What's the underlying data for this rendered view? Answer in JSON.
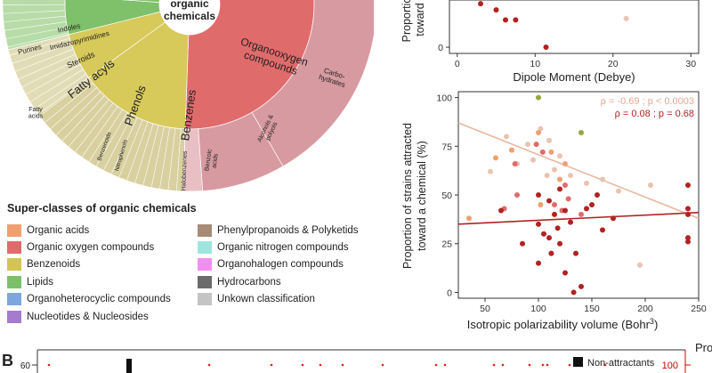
{
  "panel_b": {
    "label": "B"
  },
  "sunburst": {
    "center_label_lines": [
      "organic",
      "chemicals"
    ],
    "segments": [
      {
        "label": "Organooxygen compounds",
        "lines": [
          "Organooxygen",
          "compounds"
        ],
        "color": "#e06b6b"
      },
      {
        "label": "Carbohydrates",
        "lines": [
          "Carbo-",
          "hydrates"
        ],
        "color": "#d79aa0"
      },
      {
        "label": "Alcohols & polyols",
        "lines": [
          "Alcohols &",
          "polyols"
        ],
        "color": "#d79aa0"
      },
      {
        "label": "Benzenes",
        "lines": [
          "Benzenes"
        ],
        "color": "#d7c95a"
      },
      {
        "label": "Phenols",
        "lines": [
          "Phenols"
        ],
        "color": "#d7c95a"
      },
      {
        "label": "Benzenoids",
        "lines": [
          "Benzenoids"
        ],
        "color": "#d9d0a0"
      },
      {
        "label": "Nitrophenols",
        "lines": [
          "Nitrophenols"
        ],
        "color": "#d9d0a0"
      },
      {
        "label": "Halobenzenes",
        "lines": [
          "Halobenzenes"
        ],
        "color": "#d9d0a0"
      },
      {
        "label": "Benzoic acids",
        "lines": [
          "Benzoic",
          "acids"
        ],
        "color": "#d9d0a0"
      },
      {
        "label": "Fatty acyls",
        "lines": [
          "Fatty acyls"
        ],
        "color": "#7fc06a"
      },
      {
        "label": "Steroids",
        "lines": [
          "Steroids"
        ],
        "color": "#7fc06a"
      },
      {
        "label": "Fatty acids",
        "lines": [
          "Fatty",
          "acids"
        ],
        "color": "#b7dca8"
      },
      {
        "label": "Indoles",
        "lines": [
          "Indoles"
        ],
        "color": "#7ba7d8"
      },
      {
        "label": "Imidazopyrimidines",
        "lines": [
          "Imidazopyrimidines"
        ],
        "color": "#7ba7d8"
      },
      {
        "label": "Purines",
        "lines": [
          "Purines"
        ],
        "color": "#a8c6e8"
      }
    ]
  },
  "legend": {
    "title": "Super-classes of organic chemicals",
    "left": [
      {
        "label": "Organic acids",
        "color": "#f0a070"
      },
      {
        "label": "Organic oxygen compounds",
        "color": "#e06b6b"
      },
      {
        "label": "Benzenoids",
        "color": "#d4c452"
      },
      {
        "label": "Lipids",
        "color": "#7cc06b"
      },
      {
        "label": "Organoheterocyclic compounds",
        "color": "#7aa8dc"
      },
      {
        "label": "Nucleotides & Nucleosides",
        "color": "#a57bd0"
      }
    ],
    "right": [
      {
        "label": "Phenylpropanoids & Polyketids",
        "color": "#a88b76"
      },
      {
        "label": "Organic nitrogen compounds",
        "color": "#9ee5e0"
      },
      {
        "label": "Organohalogen compounds",
        "color": "#f08ff0"
      },
      {
        "label": "Hydrocarbons",
        "color": "#6b6b6b"
      },
      {
        "label": "Unkown classification",
        "color": "#c4c4c4"
      }
    ]
  },
  "chart_data": [
    {
      "type": "scatter",
      "title": "",
      "xlabel": "Dipole Moment (Debye)",
      "ylabel_lines": [
        "Proportio",
        "toward"
      ],
      "xlim": [
        -1,
        31
      ],
      "ylim": [
        -5,
        38
      ],
      "x_ticks": [
        0,
        10,
        20,
        30
      ],
      "y_ticks": [
        0
      ],
      "points": [
        {
          "x": 3.0,
          "y": 35,
          "c": "#b22222"
        },
        {
          "x": 5.0,
          "y": 30,
          "c": "#b22222"
        },
        {
          "x": 6.2,
          "y": 22,
          "c": "#b22222"
        },
        {
          "x": 7.5,
          "y": 22,
          "c": "#b22222"
        },
        {
          "x": 11.4,
          "y": 0,
          "c": "#b22222"
        },
        {
          "x": 21.7,
          "y": 23,
          "c": "#e8c4b0"
        }
      ]
    },
    {
      "type": "scatter",
      "title": "",
      "xlabel": "Isotropic polarizability volume (Bohr",
      "xlabel_sup": "3",
      "xlabel_close": ")",
      "ylabel_lines": [
        "Proportion of strains attracted",
        "toward a chemical (%)"
      ],
      "xlim": [
        25,
        250
      ],
      "ylim": [
        -3,
        103
      ],
      "x_ticks": [
        50,
        100,
        150,
        200,
        250
      ],
      "y_ticks": [
        0,
        25,
        50,
        75,
        100
      ],
      "annotations": [
        {
          "label": "ρ = -0.69 ; p < 0.0003",
          "color": "#e3a994"
        },
        {
          "label": "ρ = 0.08 ; p = 0.68",
          "color": "#b22222"
        }
      ],
      "fits": [
        {
          "x": [
            25,
            250
          ],
          "y": [
            87,
            38
          ],
          "color": "#e8b8a0"
        },
        {
          "x": [
            25,
            250
          ],
          "y": [
            35,
            41
          ],
          "color": "#b22222"
        }
      ],
      "points": [
        {
          "x": 100,
          "y": 100,
          "c": "#9aa63a"
        },
        {
          "x": 140,
          "y": 82,
          "c": "#9aa63a"
        },
        {
          "x": 102,
          "y": 84,
          "c": "#e8c4b0"
        },
        {
          "x": 110,
          "y": 78,
          "c": "#e8c4b0"
        },
        {
          "x": 90,
          "y": 76,
          "c": "#e8c4b0"
        },
        {
          "x": 70,
          "y": 80,
          "c": "#e8c4b0"
        },
        {
          "x": 95,
          "y": 68,
          "c": "#e8c4b0"
        },
        {
          "x": 120,
          "y": 70,
          "c": "#e8c4b0"
        },
        {
          "x": 115,
          "y": 63,
          "c": "#e8c4b0"
        },
        {
          "x": 130,
          "y": 60,
          "c": "#e8c4b0"
        },
        {
          "x": 55,
          "y": 62,
          "c": "#e8c4b0"
        },
        {
          "x": 80,
          "y": 66,
          "c": "#e8c4b0"
        },
        {
          "x": 160,
          "y": 58,
          "c": "#e8c4b0"
        },
        {
          "x": 175,
          "y": 52,
          "c": "#e8c4b0"
        },
        {
          "x": 205,
          "y": 55,
          "c": "#e8c4b0"
        },
        {
          "x": 195,
          "y": 14,
          "c": "#e8c4b0"
        },
        {
          "x": 108,
          "y": 60,
          "c": "#e8c4b0"
        },
        {
          "x": 145,
          "y": 56,
          "c": "#e8c4b0"
        },
        {
          "x": 100,
          "y": 82,
          "c": "#f0a070"
        },
        {
          "x": 75,
          "y": 73,
          "c": "#f0a070"
        },
        {
          "x": 112,
          "y": 72,
          "c": "#f0a070"
        },
        {
          "x": 125,
          "y": 66,
          "c": "#f0a070"
        },
        {
          "x": 60,
          "y": 69,
          "c": "#f0a070"
        },
        {
          "x": 102,
          "y": 45,
          "c": "#f0a070"
        },
        {
          "x": 35,
          "y": 38,
          "c": "#f0a070"
        },
        {
          "x": 120,
          "y": 58,
          "c": "#f0a070"
        },
        {
          "x": 98,
          "y": 76,
          "c": "#e06b6b"
        },
        {
          "x": 104,
          "y": 72,
          "c": "#e06b6b"
        },
        {
          "x": 128,
          "y": 48,
          "c": "#e06b6b"
        },
        {
          "x": 122,
          "y": 42,
          "c": "#e06b6b"
        },
        {
          "x": 80,
          "y": 50,
          "c": "#e06b6b"
        },
        {
          "x": 68,
          "y": 43,
          "c": "#e06b6b"
        },
        {
          "x": 115,
          "y": 45,
          "c": "#e06b6b"
        },
        {
          "x": 140,
          "y": 40,
          "c": "#e06b6b"
        },
        {
          "x": 78,
          "y": 66,
          "c": "#e06b6b"
        },
        {
          "x": 125,
          "y": 55,
          "c": "#e06b6b"
        },
        {
          "x": 120,
          "y": 53,
          "c": "#b22222"
        },
        {
          "x": 100,
          "y": 50,
          "c": "#b22222"
        },
        {
          "x": 110,
          "y": 47,
          "c": "#b22222"
        },
        {
          "x": 115,
          "y": 40,
          "c": "#b22222"
        },
        {
          "x": 125,
          "y": 42,
          "c": "#b22222"
        },
        {
          "x": 100,
          "y": 35,
          "c": "#b22222"
        },
        {
          "x": 105,
          "y": 30,
          "c": "#b22222"
        },
        {
          "x": 110,
          "y": 28,
          "c": "#b22222"
        },
        {
          "x": 118,
          "y": 33,
          "c": "#b22222"
        },
        {
          "x": 130,
          "y": 36,
          "c": "#b22222"
        },
        {
          "x": 135,
          "y": 20,
          "c": "#b22222"
        },
        {
          "x": 120,
          "y": 25,
          "c": "#b22222"
        },
        {
          "x": 100,
          "y": 15,
          "c": "#b22222"
        },
        {
          "x": 125,
          "y": 10,
          "c": "#b22222"
        },
        {
          "x": 140,
          "y": 3,
          "c": "#b22222"
        },
        {
          "x": 133,
          "y": 0,
          "c": "#b22222"
        },
        {
          "x": 85,
          "y": 25,
          "c": "#b22222"
        },
        {
          "x": 65,
          "y": 42,
          "c": "#b22222"
        },
        {
          "x": 150,
          "y": 45,
          "c": "#b22222"
        },
        {
          "x": 160,
          "y": 32,
          "c": "#b22222"
        },
        {
          "x": 170,
          "y": 38,
          "c": "#b22222"
        },
        {
          "x": 155,
          "y": 50,
          "c": "#b22222"
        },
        {
          "x": 240,
          "y": 55,
          "c": "#b22222"
        },
        {
          "x": 240,
          "y": 43,
          "c": "#b22222"
        },
        {
          "x": 240,
          "y": 40,
          "c": "#b22222"
        },
        {
          "x": 240,
          "y": 28,
          "c": "#b22222"
        },
        {
          "x": 240,
          "y": 26,
          "c": "#b22222"
        },
        {
          "x": 112,
          "y": 20,
          "c": "#b22222"
        },
        {
          "x": 145,
          "y": 43,
          "c": "#b22222"
        }
      ]
    },
    {
      "type": "scatter",
      "title": "",
      "ylim_label": "60",
      "right_label": "100",
      "right_title_partial": "Pro",
      "legend_label": "Non-attractants",
      "points_x": [
        55,
        235,
        305,
        340,
        360,
        385,
        430,
        490,
        500,
        555,
        565,
        595,
        610,
        615,
        640,
        680
      ],
      "bar_x": 145
    }
  ]
}
